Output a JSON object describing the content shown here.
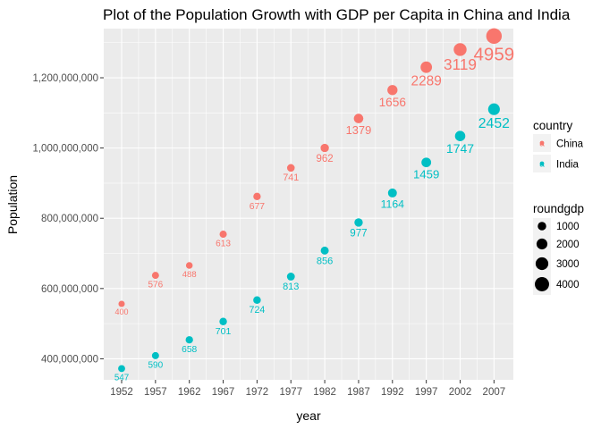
{
  "chart_data": {
    "type": "scatter",
    "title": "Plot of the Population Growth with GDP per Capita in China and India",
    "xlabel": "year",
    "ylabel": "Population",
    "x": [
      1952,
      1957,
      1962,
      1967,
      1972,
      1977,
      1982,
      1987,
      1992,
      1997,
      2002,
      2007
    ],
    "x_ticks": [
      "1952",
      "1957",
      "1962",
      "1967",
      "1972",
      "1977",
      "1982",
      "1987",
      "1992",
      "1997",
      "2002",
      "2007"
    ],
    "ylim": [
      340000000,
      1340000000
    ],
    "y_ticks": [
      400000000,
      600000000,
      800000000,
      1000000000,
      1200000000
    ],
    "y_tick_labels": [
      "400,000,000",
      "600,000,000",
      "800,000,000",
      "1,000,000,000",
      "1,200,000,000"
    ],
    "grid": true,
    "legend_position": "right",
    "series": [
      {
        "name": "China",
        "color": "#F8766D",
        "population": [
          556263527,
          637408000,
          665770000,
          754550000,
          862030000,
          943455000,
          1000281000,
          1084035000,
          1164970000,
          1230075000,
          1280400000,
          1318683096
        ],
        "labels": [
          "400",
          "576",
          "488",
          "613",
          "677",
          "741",
          "962",
          "1379",
          "1656",
          "2289",
          "3119",
          "4959"
        ]
      },
      {
        "name": "India",
        "color": "#00BFC4",
        "population": [
          372000000,
          409000000,
          454000000,
          506000000,
          567000000,
          634000000,
          708000000,
          788000000,
          872000000,
          959000000,
          1034172547,
          1110396331
        ],
        "labels": [
          "547",
          "590",
          "658",
          "701",
          "724",
          "813",
          "856",
          "977",
          "1164",
          "1459",
          "1747",
          "2452"
        ]
      }
    ],
    "color_legend": {
      "title": "country",
      "items": [
        "China",
        "India"
      ],
      "key_glyph": "a"
    },
    "size_legend": {
      "title": "roundgdp",
      "items": [
        "1000",
        "2000",
        "3000",
        "4000"
      ],
      "values": [
        1000,
        2000,
        3000,
        4000
      ]
    }
  }
}
